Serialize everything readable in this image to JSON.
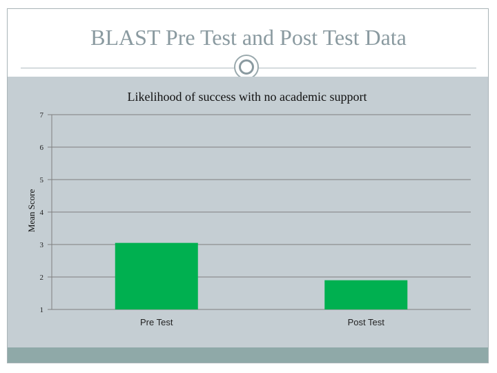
{
  "slide": {
    "title": "BLAST Pre Test and Post Test Data"
  },
  "colors": {
    "bar": "#00b050",
    "gridline": "#7f7f7f",
    "band": "#c5ced3",
    "footer": "#8fa9a8"
  },
  "chart_data": {
    "type": "bar",
    "title": "Likelihood of success with no academic support",
    "xlabel": "",
    "ylabel": "Mean Score",
    "categories": [
      "Pre Test",
      "Post Test"
    ],
    "values": [
      3.05,
      1.9
    ],
    "ylim": [
      1,
      7
    ],
    "yticks": [
      "1",
      "2",
      "3",
      "4",
      "5",
      "6",
      "7"
    ],
    "grid": true,
    "legend": "none"
  }
}
